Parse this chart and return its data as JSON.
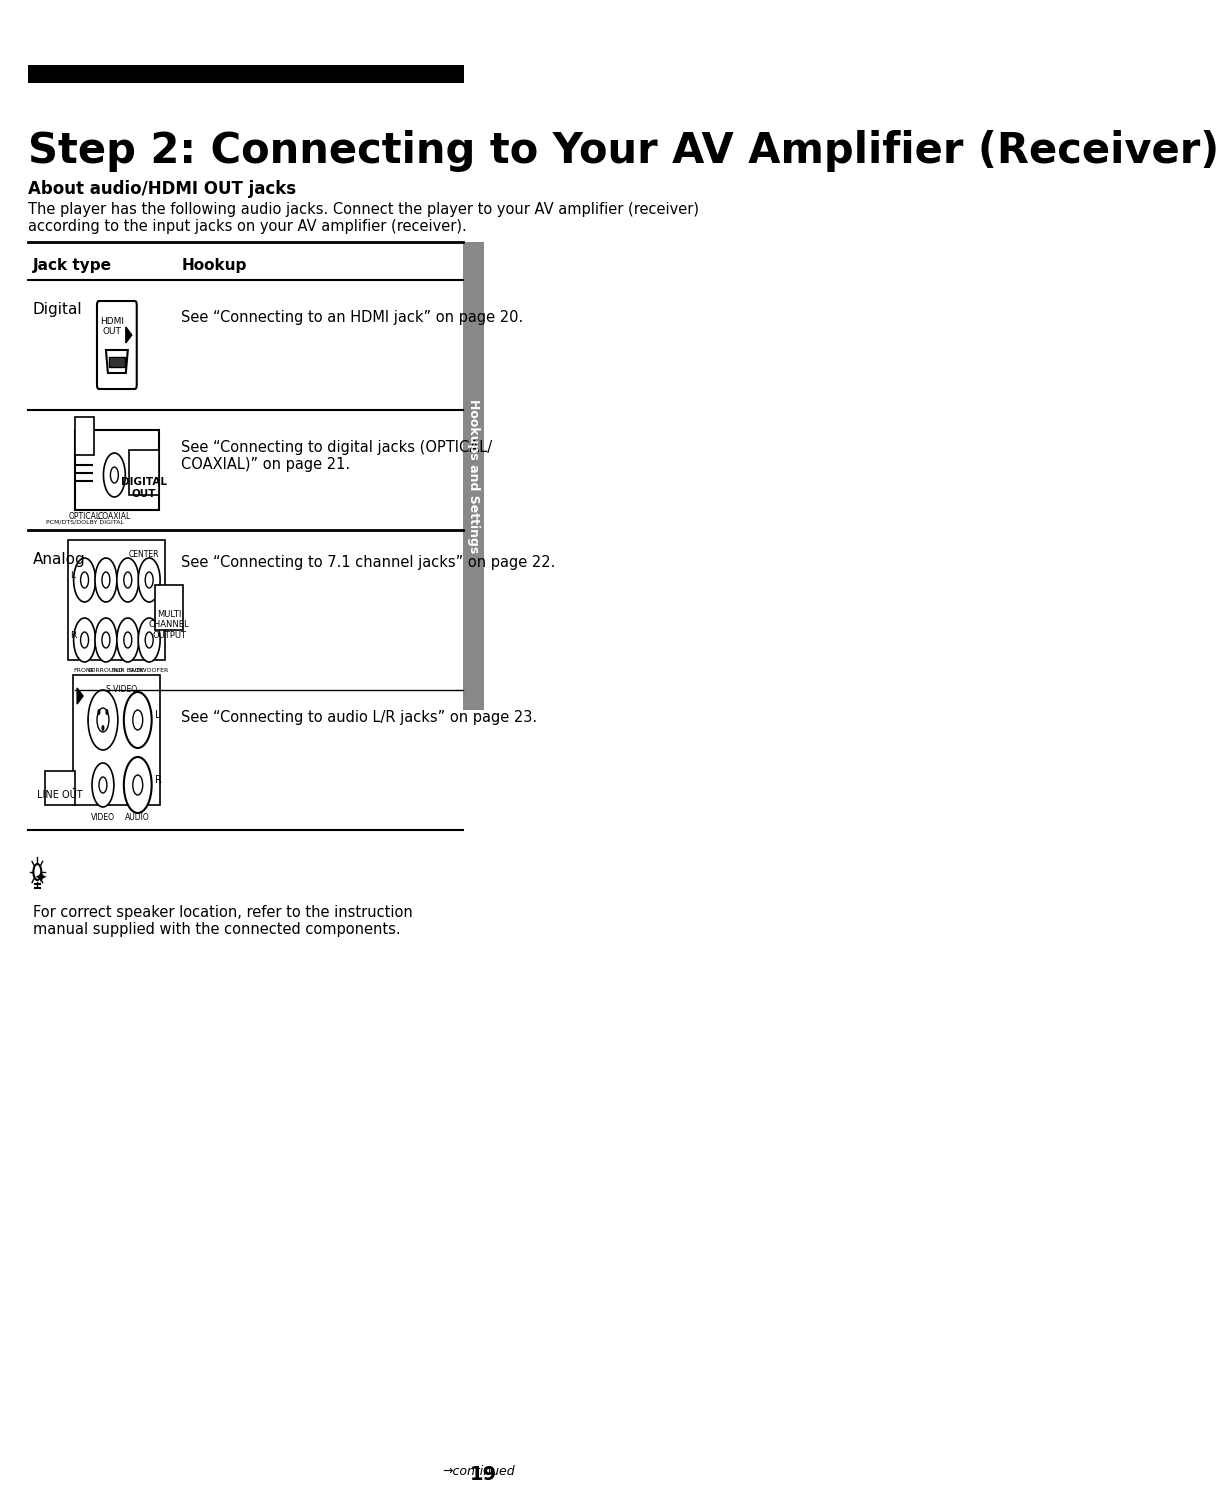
{
  "title": "Step 2: Connecting to Your AV Amplifier (Receiver)",
  "subtitle": "About audio/HDMI OUT jacks",
  "body_text": "The player has the following audio jacks. Connect the player to your AV amplifier (receiver)\naccording to the input jacks on your AV amplifier (receiver).",
  "col1_header": "Jack type",
  "col2_header": "Hookup",
  "rows": [
    {
      "type": "Digital",
      "desc": "See “Connecting to an HDMI jack” on page 20.",
      "img": "hdmi"
    },
    {
      "type": "",
      "desc": "See “Connecting to digital jacks (OPTICAL/\nCOAXIAL)” on page 21.",
      "img": "optical"
    },
    {
      "type": "Analog",
      "desc": "See “Connecting to 7.1 channel jacks” on page 22.",
      "img": "multichannel"
    },
    {
      "type": "",
      "desc": "See “Connecting to audio L/R jacks” on page 23.",
      "img": "lr"
    }
  ],
  "tip_text": "For correct speaker location, refer to the instruction\nmanual supplied with the connected components.",
  "sidebar_text": "Hookups and Settings",
  "page_number": "19",
  "continued_text": "continued",
  "bg_color": "#ffffff",
  "text_color": "#000000",
  "header_bar_color": "#000000",
  "table_line_color": "#000000",
  "sidebar_bg": "#808080"
}
